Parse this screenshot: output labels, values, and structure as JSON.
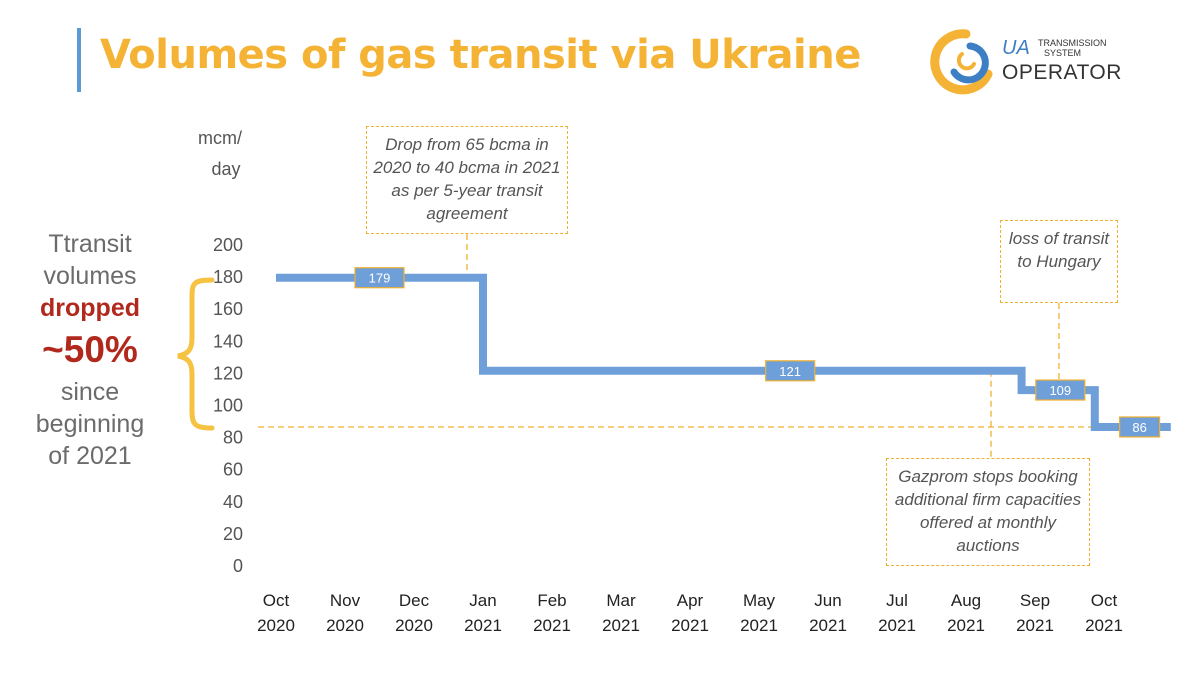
{
  "title": "Volumes of gas transit via Ukraine",
  "logo": {
    "ua": "UA",
    "line1": "TRANSMISSION",
    "line2": "SYSTEM",
    "operator": "OPERATOR"
  },
  "side_text": {
    "line1": "Ttransit",
    "line2": "volumes",
    "line3": "dropped",
    "line4": "~50%",
    "line5": "since",
    "line6": "beginning",
    "line7": "of 2021"
  },
  "annotations": {
    "drop_agreement": "Drop from 65 bcma in 2020 to 40 bcma in 2021 as per 5-year transit agreement",
    "loss_hungary": "loss of transit to Hungary",
    "gazprom_booking": "Gazprom stops booking additional firm capacities offered at monthly auctions"
  },
  "colors": {
    "title": "#f5b335",
    "line": "#6f9fd8",
    "accent_red": "#b0291c",
    "callout_border": "#f0b030",
    "text_gray": "#555555"
  },
  "chart_data": {
    "type": "line",
    "step": true,
    "ylabel_line1": "mcm/",
    "ylabel_line2": "day",
    "ylim": [
      0,
      200
    ],
    "yticks": [
      "0",
      "20",
      "40",
      "60",
      "80",
      "100",
      "120",
      "140",
      "160",
      "180",
      "200"
    ],
    "categories": [
      [
        "Oct",
        "2020"
      ],
      [
        "Nov",
        "2020"
      ],
      [
        "Dec",
        "2020"
      ],
      [
        "Jan",
        "2021"
      ],
      [
        "Feb",
        "2021"
      ],
      [
        "Mar",
        "2021"
      ],
      [
        "Apr",
        "2021"
      ],
      [
        "May",
        "2021"
      ],
      [
        "Jun",
        "2021"
      ],
      [
        "Jul",
        "2021"
      ],
      [
        "Aug",
        "2021"
      ],
      [
        "Sep",
        "2021"
      ],
      [
        "Oct",
        "2021"
      ]
    ],
    "series": [
      {
        "points": [
          [
            "2020-10-01",
            179
          ],
          [
            "2020-12-31",
            179
          ],
          [
            "2021-01-01",
            121
          ],
          [
            "2021-08-25",
            121
          ],
          [
            "2021-08-26",
            109
          ],
          [
            "2021-09-25",
            109
          ],
          [
            "2021-09-27",
            86
          ],
          [
            "2021-10-31",
            86
          ]
        ]
      }
    ],
    "data_labels": [
      {
        "text": "179",
        "x": "2020-11-16",
        "y": 179
      },
      {
        "text": "121",
        "x": "2021-05-15",
        "y": 121
      },
      {
        "text": "109",
        "x": "2021-09-12",
        "y": 109
      },
      {
        "text": "86",
        "x": "2021-10-17",
        "y": 86
      }
    ],
    "reference_line": {
      "y": 86,
      "style": "dashed"
    },
    "grid": false,
    "legend": "none"
  }
}
